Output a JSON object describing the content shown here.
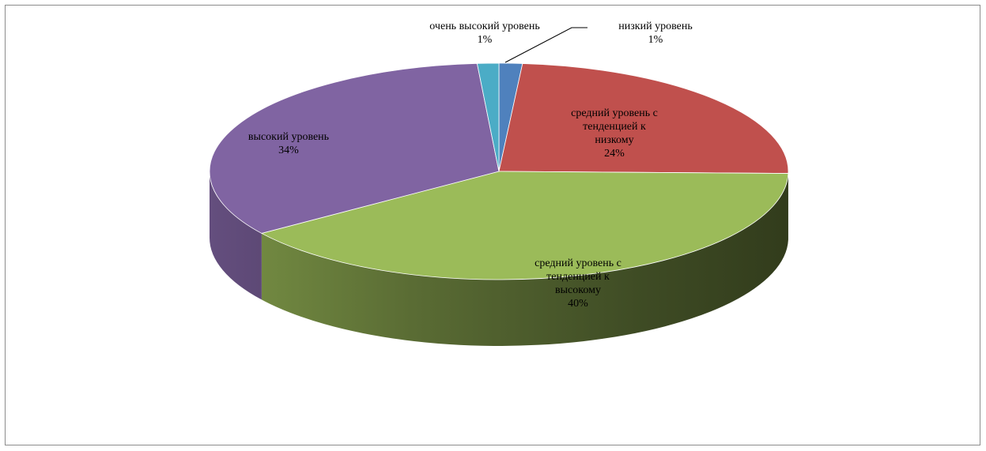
{
  "chart_data": {
    "type": "pie",
    "style": "3d",
    "title": "",
    "start_angle_deg": 90,
    "direction": "clockwise",
    "slices": [
      {
        "label": "низкий уровень",
        "percent_label": "1%",
        "value": 1.3,
        "color": "#4F81BD"
      },
      {
        "label": "средний уровень с тенденцией к низкому",
        "percent_label": "24%",
        "value": 24,
        "color": "#C0504D"
      },
      {
        "label": "средний уровень с тенденцией к высокому",
        "percent_label": "40%",
        "value": 40,
        "color": "#9BBB59"
      },
      {
        "label": "высокий уровень",
        "percent_label": "34%",
        "value": 33.5,
        "color": "#8064A2"
      },
      {
        "label": "очень высокий уровень",
        "percent_label": "1%",
        "value": 1.2,
        "color": "#4BACC6"
      }
    ],
    "legend": "none",
    "data_labels": "category name and percentage"
  }
}
